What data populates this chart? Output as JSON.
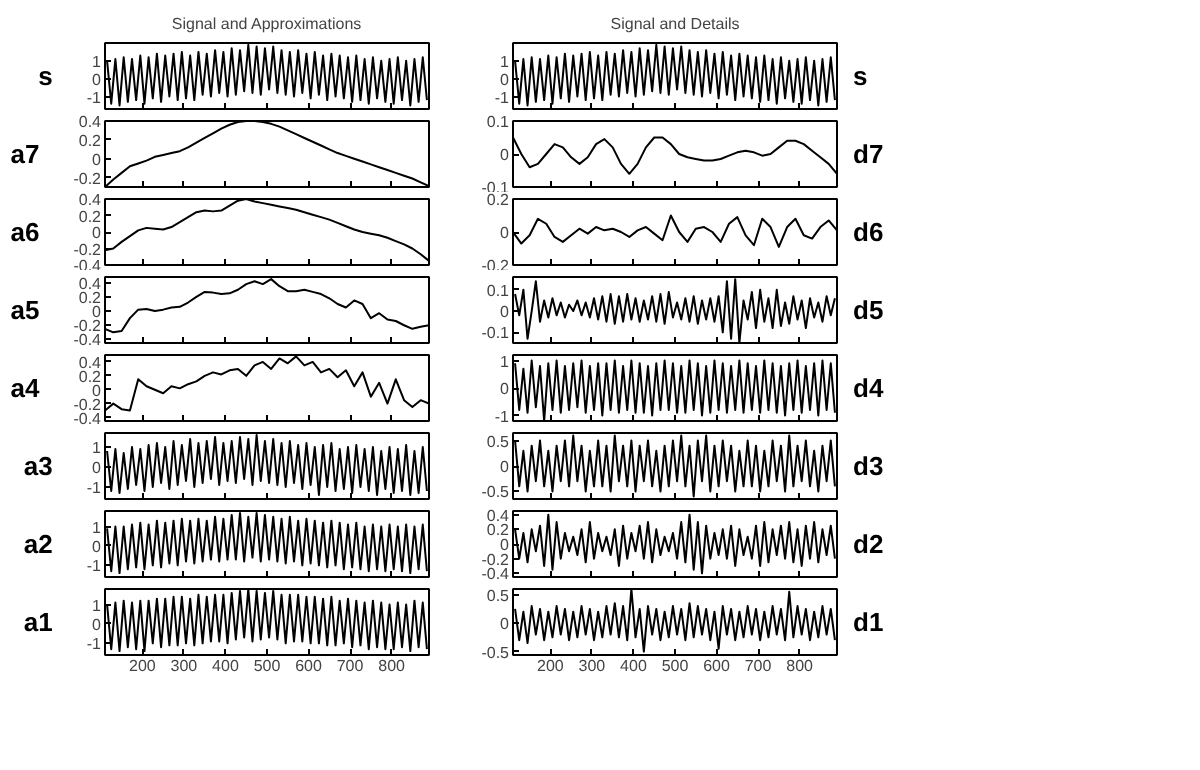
{
  "chart_data": [
    {
      "type": "line",
      "title": "Signal and Approximations",
      "ylabel": "s",
      "x": [
        115,
        125,
        135,
        145,
        155,
        165,
        175,
        185,
        195,
        205,
        215,
        225,
        235,
        245,
        255,
        265,
        275,
        285,
        295,
        305,
        315,
        325,
        335,
        345,
        355,
        365,
        375,
        385,
        395,
        405,
        415,
        425,
        435,
        445,
        455,
        465,
        475,
        485,
        495,
        505,
        515,
        525,
        535,
        545,
        555,
        565,
        575,
        585,
        595,
        605,
        615,
        625,
        635,
        645,
        655,
        665,
        675,
        685,
        695,
        705,
        715,
        725,
        735,
        745,
        755,
        765,
        775,
        785,
        795,
        805,
        815,
        825,
        835,
        845,
        855,
        865,
        875,
        885
      ],
      "series": [
        {
          "color": "#000000",
          "values": [
            1.0,
            -1.4,
            1.1,
            -1.5,
            1.2,
            -1.3,
            1.1,
            -1.2,
            1.3,
            -1.4,
            1.2,
            -1.1,
            1.4,
            -1.3,
            1.3,
            -1.0,
            1.4,
            -1.2,
            1.5,
            -1.1,
            1.3,
            -1.2,
            1.5,
            -0.9,
            1.4,
            -1.0,
            1.6,
            -0.8,
            1.5,
            -1.0,
            1.7,
            -0.9,
            1.6,
            -0.7,
            1.9,
            -0.8,
            1.8,
            -0.9,
            1.7,
            -0.6,
            1.8,
            -0.8,
            1.6,
            -0.9,
            1.5,
            -1.0,
            1.6,
            -0.8,
            1.4,
            -1.1,
            1.5,
            -0.9,
            1.3,
            -1.2,
            1.4,
            -1.0,
            1.3,
            -1.1,
            1.2,
            -1.3,
            1.3,
            -1.2,
            1.1,
            -1.4,
            1.2,
            -1.1,
            1.0,
            -1.3,
            1.1,
            -1.4,
            1.2,
            -1.2,
            1.0,
            -1.5,
            1.1,
            -1.3,
            1.2,
            -1.2
          ]
        }
      ],
      "xlim": [
        110,
        890
      ],
      "ylim": [
        -1.7,
        2.0
      ],
      "xticks": [
        200,
        300,
        400,
        500,
        600,
        700,
        800
      ],
      "yticks": [
        -1,
        0,
        1
      ],
      "tick_labels": "y"
    },
    {
      "type": "line",
      "title": "Signal and Details",
      "ylabel": "s",
      "x": [
        115,
        125,
        135,
        145,
        155,
        165,
        175,
        185,
        195,
        205,
        215,
        225,
        235,
        245,
        255,
        265,
        275,
        285,
        295,
        305,
        315,
        325,
        335,
        345,
        355,
        365,
        375,
        385,
        395,
        405,
        415,
        425,
        435,
        445,
        455,
        465,
        475,
        485,
        495,
        505,
        515,
        525,
        535,
        545,
        555,
        565,
        575,
        585,
        595,
        605,
        615,
        625,
        635,
        645,
        655,
        665,
        675,
        685,
        695,
        705,
        715,
        725,
        735,
        745,
        755,
        765,
        775,
        785,
        795,
        805,
        815,
        825,
        835,
        845,
        855,
        865,
        875,
        885
      ],
      "series": [
        {
          "color": "#000000",
          "values": [
            1.0,
            -1.4,
            1.1,
            -1.5,
            1.2,
            -1.3,
            1.1,
            -1.2,
            1.3,
            -1.4,
            1.2,
            -1.1,
            1.4,
            -1.3,
            1.3,
            -1.0,
            1.4,
            -1.2,
            1.5,
            -1.1,
            1.3,
            -1.2,
            1.5,
            -0.9,
            1.4,
            -1.0,
            1.6,
            -0.8,
            1.5,
            -1.0,
            1.7,
            -0.9,
            1.6,
            -0.7,
            1.9,
            -0.8,
            1.8,
            -0.9,
            1.7,
            -0.6,
            1.8,
            -0.8,
            1.6,
            -0.9,
            1.5,
            -1.0,
            1.6,
            -0.8,
            1.4,
            -1.1,
            1.5,
            -0.9,
            1.3,
            -1.2,
            1.4,
            -1.0,
            1.3,
            -1.1,
            1.2,
            -1.3,
            1.3,
            -1.2,
            1.1,
            -1.4,
            1.2,
            -1.1,
            1.0,
            -1.3,
            1.1,
            -1.4,
            1.2,
            -1.2,
            1.0,
            -1.5,
            1.1,
            -1.3,
            1.2,
            -1.2
          ]
        }
      ],
      "xlim": [
        110,
        890
      ],
      "ylim": [
        -1.7,
        2.0
      ],
      "xticks": [
        200,
        300,
        400,
        500,
        600,
        700,
        800
      ],
      "yticks": [
        -1,
        0,
        1
      ],
      "tick_labels": "y"
    },
    {
      "type": "line",
      "ylabel": "a7",
      "x": [
        110,
        130,
        150,
        170,
        190,
        210,
        230,
        250,
        270,
        290,
        310,
        330,
        350,
        370,
        390,
        410,
        430,
        450,
        470,
        490,
        510,
        530,
        550,
        570,
        590,
        610,
        630,
        650,
        670,
        690,
        710,
        730,
        750,
        770,
        790,
        810,
        830,
        850,
        870,
        890
      ],
      "series": [
        {
          "color": "#000000",
          "values": [
            -0.3,
            -0.22,
            -0.15,
            -0.08,
            -0.05,
            -0.02,
            0.02,
            0.04,
            0.06,
            0.08,
            0.12,
            0.17,
            0.22,
            0.27,
            0.32,
            0.36,
            0.39,
            0.4,
            0.4,
            0.39,
            0.37,
            0.34,
            0.3,
            0.26,
            0.22,
            0.18,
            0.14,
            0.1,
            0.06,
            0.03,
            0.0,
            -0.03,
            -0.06,
            -0.09,
            -0.12,
            -0.15,
            -0.18,
            -0.21,
            -0.25,
            -0.29
          ]
        }
      ],
      "xlim": [
        110,
        890
      ],
      "ylim": [
        -0.3,
        0.4
      ],
      "xticks": [
        200,
        300,
        400,
        500,
        600,
        700,
        800
      ],
      "yticks": [
        -0.2,
        0,
        0.2,
        0.4
      ],
      "tick_labels": "y"
    },
    {
      "type": "line",
      "ylabel": "d7",
      "x": [
        110,
        130,
        150,
        170,
        190,
        210,
        230,
        250,
        270,
        290,
        310,
        330,
        350,
        370,
        390,
        410,
        430,
        450,
        470,
        490,
        510,
        530,
        550,
        570,
        590,
        610,
        630,
        650,
        670,
        690,
        710,
        730,
        750,
        770,
        790,
        810,
        830,
        850,
        870,
        890
      ],
      "series": [
        {
          "color": "#000000",
          "values": [
            0.05,
            0.0,
            -0.04,
            -0.03,
            0.0,
            0.03,
            0.02,
            -0.01,
            -0.03,
            -0.01,
            0.03,
            0.045,
            0.02,
            -0.03,
            -0.06,
            -0.03,
            0.02,
            0.05,
            0.05,
            0.03,
            0.0,
            -0.01,
            -0.015,
            -0.02,
            -0.02,
            -0.015,
            -0.005,
            0.005,
            0.01,
            0.005,
            -0.005,
            0.0,
            0.02,
            0.04,
            0.04,
            0.03,
            0.01,
            -0.01,
            -0.03,
            -0.06
          ]
        }
      ],
      "xlim": [
        110,
        890
      ],
      "ylim": [
        -0.1,
        0.1
      ],
      "xticks": [
        200,
        300,
        400,
        500,
        600,
        700,
        800
      ],
      "yticks": [
        -0.1,
        0,
        0.1
      ],
      "tick_labels": "y"
    },
    {
      "type": "line",
      "ylabel": "a6",
      "x": [
        110,
        130,
        150,
        170,
        190,
        210,
        230,
        250,
        270,
        290,
        310,
        330,
        350,
        370,
        390,
        410,
        430,
        450,
        470,
        490,
        510,
        530,
        550,
        570,
        590,
        610,
        630,
        650,
        670,
        690,
        710,
        730,
        750,
        770,
        790,
        810,
        830,
        850,
        870,
        890
      ],
      "series": [
        {
          "color": "#000000",
          "values": [
            -0.22,
            -0.2,
            -0.12,
            -0.05,
            0.02,
            0.05,
            0.04,
            0.03,
            0.06,
            0.12,
            0.18,
            0.24,
            0.26,
            0.25,
            0.26,
            0.32,
            0.38,
            0.4,
            0.37,
            0.35,
            0.33,
            0.31,
            0.29,
            0.27,
            0.24,
            0.21,
            0.18,
            0.15,
            0.11,
            0.07,
            0.03,
            0.0,
            -0.02,
            -0.04,
            -0.07,
            -0.11,
            -0.15,
            -0.2,
            -0.27,
            -0.35
          ]
        }
      ],
      "xlim": [
        110,
        890
      ],
      "ylim": [
        -0.4,
        0.4
      ],
      "xticks": [
        200,
        300,
        400,
        500,
        600,
        700,
        800
      ],
      "yticks": [
        -0.4,
        -0.2,
        0,
        0.2,
        0.4
      ],
      "tick_labels": "y"
    },
    {
      "type": "line",
      "ylabel": "d6",
      "x": [
        110,
        130,
        150,
        170,
        190,
        210,
        230,
        250,
        270,
        290,
        310,
        330,
        350,
        370,
        390,
        410,
        430,
        450,
        470,
        490,
        510,
        530,
        550,
        570,
        590,
        610,
        630,
        650,
        670,
        690,
        710,
        730,
        750,
        770,
        790,
        810,
        830,
        850,
        870,
        890
      ],
      "series": [
        {
          "color": "#000000",
          "values": [
            0.0,
            -0.07,
            -0.02,
            0.08,
            0.05,
            -0.03,
            -0.06,
            -0.02,
            0.02,
            -0.01,
            0.03,
            0.01,
            0.02,
            0.0,
            -0.03,
            0.01,
            0.03,
            -0.01,
            -0.05,
            0.1,
            0.0,
            -0.06,
            0.02,
            0.03,
            0.0,
            -0.06,
            0.05,
            0.09,
            -0.02,
            -0.08,
            0.08,
            0.03,
            -0.09,
            0.03,
            0.08,
            -0.02,
            -0.04,
            0.03,
            0.07,
            0.01
          ]
        }
      ],
      "xlim": [
        110,
        890
      ],
      "ylim": [
        -0.2,
        0.2
      ],
      "xticks": [
        200,
        300,
        400,
        500,
        600,
        700,
        800
      ],
      "yticks": [
        -0.2,
        0,
        0.2
      ],
      "tick_labels": "y"
    },
    {
      "type": "line",
      "ylabel": "a5",
      "x": [
        110,
        130,
        150,
        170,
        190,
        210,
        230,
        250,
        270,
        290,
        310,
        330,
        350,
        370,
        390,
        410,
        430,
        450,
        470,
        490,
        510,
        530,
        550,
        570,
        590,
        610,
        630,
        650,
        670,
        690,
        710,
        730,
        750,
        770,
        790,
        810,
        830,
        850,
        870,
        890
      ],
      "series": [
        {
          "color": "#000000",
          "values": [
            -0.25,
            -0.3,
            -0.28,
            -0.1,
            0.02,
            0.03,
            0.0,
            0.02,
            0.05,
            0.06,
            0.12,
            0.2,
            0.27,
            0.26,
            0.24,
            0.25,
            0.3,
            0.38,
            0.42,
            0.38,
            0.45,
            0.35,
            0.28,
            0.28,
            0.3,
            0.27,
            0.24,
            0.18,
            0.1,
            0.05,
            0.15,
            0.1,
            -0.1,
            -0.03,
            -0.12,
            -0.14,
            -0.2,
            -0.25,
            -0.22,
            -0.2
          ]
        }
      ],
      "xlim": [
        110,
        890
      ],
      "ylim": [
        -0.45,
        0.48
      ],
      "xticks": [
        200,
        300,
        400,
        500,
        600,
        700,
        800
      ],
      "yticks": [
        -0.4,
        -0.2,
        0,
        0.2,
        0.4
      ],
      "tick_labels": "y"
    },
    {
      "type": "line",
      "ylabel": "d5",
      "x": [
        115,
        125,
        135,
        145,
        155,
        165,
        175,
        185,
        195,
        205,
        215,
        225,
        235,
        245,
        255,
        265,
        275,
        285,
        295,
        305,
        315,
        325,
        335,
        345,
        355,
        365,
        375,
        385,
        395,
        405,
        415,
        425,
        435,
        445,
        455,
        465,
        475,
        485,
        495,
        505,
        515,
        525,
        535,
        545,
        555,
        565,
        575,
        585,
        595,
        605,
        615,
        625,
        635,
        645,
        655,
        665,
        675,
        685,
        695,
        705,
        715,
        725,
        735,
        745,
        755,
        765,
        775,
        785,
        795,
        805,
        815,
        825,
        835,
        845,
        855,
        865,
        875,
        885
      ],
      "series": [
        {
          "color": "#000000",
          "values": [
            0.08,
            -0.02,
            0.1,
            -0.13,
            0.0,
            0.14,
            -0.05,
            0.05,
            -0.03,
            0.06,
            -0.02,
            0.04,
            -0.03,
            0.03,
            0.0,
            0.05,
            -0.02,
            0.04,
            -0.03,
            0.06,
            -0.04,
            0.07,
            -0.05,
            0.08,
            -0.06,
            0.07,
            -0.05,
            0.08,
            -0.04,
            0.06,
            -0.05,
            0.05,
            -0.04,
            0.07,
            -0.05,
            0.08,
            -0.06,
            0.09,
            -0.03,
            0.04,
            -0.04,
            0.06,
            -0.05,
            0.07,
            -0.06,
            0.05,
            -0.04,
            0.06,
            -0.05,
            0.07,
            -0.1,
            0.14,
            -0.13,
            0.15,
            -0.15,
            0.05,
            -0.04,
            0.09,
            -0.08,
            0.1,
            -0.05,
            0.06,
            -0.08,
            0.1,
            -0.07,
            0.04,
            -0.06,
            0.07,
            -0.04,
            0.05,
            -0.08,
            0.06,
            -0.03,
            0.04,
            -0.05,
            0.07,
            -0.02,
            0.06
          ]
        }
      ],
      "xlim": [
        110,
        890
      ],
      "ylim": [
        -0.15,
        0.16
      ],
      "xticks": [
        200,
        300,
        400,
        500,
        600,
        700,
        800
      ],
      "yticks": [
        -0.1,
        0,
        0.1
      ],
      "tick_labels": "y"
    },
    {
      "type": "line",
      "ylabel": "a4",
      "x": [
        110,
        130,
        150,
        170,
        190,
        210,
        230,
        250,
        270,
        290,
        310,
        330,
        350,
        370,
        390,
        410,
        430,
        450,
        470,
        490,
        510,
        530,
        550,
        570,
        590,
        610,
        630,
        650,
        670,
        690,
        710,
        730,
        750,
        770,
        790,
        810,
        830,
        850,
        870,
        890
      ],
      "series": [
        {
          "color": "#000000",
          "values": [
            -0.3,
            -0.2,
            -0.28,
            -0.3,
            0.15,
            0.05,
            0.0,
            -0.05,
            0.05,
            0.02,
            0.08,
            0.12,
            0.2,
            0.25,
            0.22,
            0.28,
            0.3,
            0.2,
            0.35,
            0.4,
            0.3,
            0.45,
            0.38,
            0.48,
            0.35,
            0.4,
            0.25,
            0.3,
            0.18,
            0.28,
            0.05,
            0.25,
            -0.1,
            0.1,
            -0.2,
            0.15,
            -0.15,
            -0.25,
            -0.15,
            -0.2
          ]
        }
      ],
      "xlim": [
        110,
        890
      ],
      "ylim": [
        -0.45,
        0.5
      ],
      "xticks": [
        200,
        300,
        400,
        500,
        600,
        700,
        800
      ],
      "yticks": [
        -0.4,
        -0.2,
        0,
        0.2,
        0.4
      ],
      "tick_labels": "y"
    },
    {
      "type": "line",
      "ylabel": "d4",
      "x": [
        115,
        125,
        135,
        145,
        155,
        165,
        175,
        185,
        195,
        205,
        215,
        225,
        235,
        245,
        255,
        265,
        275,
        285,
        295,
        305,
        315,
        325,
        335,
        345,
        355,
        365,
        375,
        385,
        395,
        405,
        415,
        425,
        435,
        445,
        455,
        465,
        475,
        485,
        495,
        505,
        515,
        525,
        535,
        545,
        555,
        565,
        575,
        585,
        595,
        605,
        615,
        625,
        635,
        645,
        655,
        665,
        675,
        685,
        695,
        705,
        715,
        725,
        735,
        745,
        755,
        765,
        775,
        785,
        795,
        805,
        815,
        825,
        835,
        845,
        855,
        865,
        875,
        885
      ],
      "series": [
        {
          "color": "#000000",
          "values": [
            0.9,
            -0.8,
            0.7,
            -0.9,
            1.0,
            -0.7,
            0.8,
            -1.2,
            0.9,
            -0.8,
            1.0,
            -0.9,
            0.8,
            -0.8,
            0.9,
            -0.7,
            1.0,
            -0.9,
            0.8,
            -0.8,
            0.9,
            -1.0,
            0.9,
            -0.8,
            1.0,
            -0.9,
            0.8,
            -0.8,
            1.0,
            -0.9,
            0.9,
            -0.9,
            0.8,
            -1.0,
            0.9,
            -0.8,
            1.0,
            -0.8,
            0.9,
            -0.9,
            0.8,
            -0.9,
            1.0,
            -0.8,
            0.9,
            -1.0,
            0.8,
            -0.9,
            1.0,
            -0.8,
            0.9,
            -0.9,
            0.8,
            -0.8,
            1.0,
            -0.9,
            0.9,
            -0.8,
            0.8,
            -0.9,
            1.0,
            -0.8,
            0.9,
            -0.9,
            0.8,
            -1.0,
            0.9,
            -0.8,
            1.0,
            -0.9,
            0.8,
            -0.8,
            0.9,
            -1.0,
            1.0,
            -0.8,
            0.9,
            -0.9
          ]
        }
      ],
      "xlim": [
        110,
        890
      ],
      "ylim": [
        -1.2,
        1.2
      ],
      "xticks": [
        200,
        300,
        400,
        500,
        600,
        700,
        800
      ],
      "yticks": [
        -1,
        0,
        1
      ],
      "tick_labels": "y"
    },
    {
      "type": "line",
      "ylabel": "a3",
      "x": [
        115,
        125,
        135,
        145,
        155,
        165,
        175,
        185,
        195,
        205,
        215,
        225,
        235,
        245,
        255,
        265,
        275,
        285,
        295,
        305,
        315,
        325,
        335,
        345,
        355,
        365,
        375,
        385,
        395,
        405,
        415,
        425,
        435,
        445,
        455,
        465,
        475,
        485,
        495,
        505,
        515,
        525,
        535,
        545,
        555,
        565,
        575,
        585,
        595,
        605,
        615,
        625,
        635,
        645,
        655,
        665,
        675,
        685,
        695,
        705,
        715,
        725,
        735,
        745,
        755,
        765,
        775,
        785,
        795,
        805,
        815,
        825,
        835,
        845,
        855,
        865,
        875,
        885
      ],
      "series": [
        {
          "color": "#000000",
          "values": [
            0.8,
            -1.2,
            0.9,
            -1.3,
            0.7,
            -1.1,
            1.0,
            -0.9,
            0.9,
            -1.2,
            1.1,
            -1.0,
            1.2,
            -0.8,
            1.0,
            -1.1,
            1.3,
            -0.9,
            1.1,
            -0.7,
            1.4,
            -1.0,
            1.2,
            -0.8,
            1.3,
            -0.6,
            1.5,
            -0.9,
            1.2,
            -0.7,
            1.3,
            -0.8,
            1.5,
            -0.6,
            1.4,
            -0.9,
            1.6,
            -0.7,
            1.3,
            -0.8,
            1.4,
            -0.9,
            1.2,
            -1.0,
            1.3,
            -0.8,
            1.1,
            -1.1,
            1.2,
            -0.9,
            1.0,
            -1.4,
            1.1,
            -1.0,
            1.2,
            -1.2,
            0.9,
            -1.1,
            1.0,
            -1.3,
            1.1,
            -1.0,
            0.9,
            -1.2,
            1.0,
            -1.4,
            0.8,
            -1.1,
            1.0,
            -1.3,
            0.9,
            -1.2,
            1.1,
            -1.4,
            0.8,
            -1.3,
            1.0,
            -1.2
          ]
        }
      ],
      "xlim": [
        110,
        890
      ],
      "ylim": [
        -1.6,
        1.7
      ],
      "xticks": [
        200,
        300,
        400,
        500,
        600,
        700,
        800
      ],
      "yticks": [
        -1,
        0,
        1
      ],
      "tick_labels": "y"
    },
    {
      "type": "line",
      "ylabel": "d3",
      "x": [
        115,
        125,
        135,
        145,
        155,
        165,
        175,
        185,
        195,
        205,
        215,
        225,
        235,
        245,
        255,
        265,
        275,
        285,
        295,
        305,
        315,
        325,
        335,
        345,
        355,
        365,
        375,
        385,
        395,
        405,
        415,
        425,
        435,
        445,
        455,
        465,
        475,
        485,
        495,
        505,
        515,
        525,
        535,
        545,
        555,
        565,
        575,
        585,
        595,
        605,
        615,
        625,
        635,
        645,
        655,
        665,
        675,
        685,
        695,
        705,
        715,
        725,
        735,
        745,
        755,
        765,
        775,
        785,
        795,
        805,
        815,
        825,
        835,
        845,
        855,
        865,
        875,
        885
      ],
      "series": [
        {
          "color": "#000000",
          "values": [
            0.5,
            -0.4,
            0.3,
            -0.5,
            0.4,
            -0.3,
            0.5,
            -0.4,
            0.3,
            -0.5,
            0.4,
            -0.3,
            0.5,
            -0.4,
            0.6,
            -0.3,
            0.4,
            -0.5,
            0.3,
            -0.4,
            0.5,
            -0.4,
            0.4,
            -0.5,
            0.6,
            -0.3,
            0.4,
            -0.4,
            0.5,
            -0.5,
            0.4,
            -0.3,
            0.5,
            -0.4,
            0.3,
            -0.5,
            0.4,
            -0.4,
            0.5,
            -0.3,
            0.6,
            -0.4,
            0.4,
            -0.6,
            0.5,
            -0.3,
            0.6,
            -0.5,
            0.4,
            -0.4,
            0.5,
            -0.3,
            0.4,
            -0.5,
            0.3,
            -0.4,
            0.5,
            -0.4,
            0.4,
            -0.5,
            0.3,
            -0.4,
            0.5,
            -0.3,
            0.4,
            -0.5,
            0.6,
            -0.4,
            0.4,
            -0.3,
            0.5,
            -0.4,
            0.3,
            -0.5,
            0.4,
            -0.3,
            0.5,
            -0.4
          ]
        }
      ],
      "xlim": [
        110,
        890
      ],
      "ylim": [
        -0.65,
        0.65
      ],
      "xticks": [
        200,
        300,
        400,
        500,
        600,
        700,
        800
      ],
      "yticks": [
        -0.5,
        0,
        0.5
      ],
      "tick_labels": "y"
    },
    {
      "type": "line",
      "ylabel": "a2",
      "x": [
        115,
        125,
        135,
        145,
        155,
        165,
        175,
        185,
        195,
        205,
        215,
        225,
        235,
        245,
        255,
        265,
        275,
        285,
        295,
        305,
        315,
        325,
        335,
        345,
        355,
        365,
        375,
        385,
        395,
        405,
        415,
        425,
        435,
        445,
        455,
        465,
        475,
        485,
        495,
        505,
        515,
        525,
        535,
        545,
        555,
        565,
        575,
        585,
        595,
        605,
        615,
        625,
        635,
        645,
        655,
        665,
        675,
        685,
        695,
        705,
        715,
        725,
        735,
        745,
        755,
        765,
        775,
        785,
        795,
        805,
        815,
        825,
        835,
        845,
        855,
        865,
        875,
        885
      ],
      "series": [
        {
          "color": "#000000",
          "values": [
            0.9,
            -1.3,
            1.0,
            -1.4,
            1.0,
            -1.2,
            1.1,
            -1.1,
            1.2,
            -1.2,
            1.1,
            -1.0,
            1.3,
            -1.1,
            1.2,
            -0.9,
            1.3,
            -1.0,
            1.4,
            -0.8,
            1.3,
            -0.9,
            1.4,
            -0.8,
            1.3,
            -0.7,
            1.5,
            -0.8,
            1.4,
            -0.7,
            1.6,
            -0.7,
            1.7,
            -0.8,
            1.5,
            -0.6,
            1.7,
            -0.8,
            1.6,
            -0.7,
            1.5,
            -0.8,
            1.4,
            -0.9,
            1.5,
            -0.8,
            1.3,
            -1.0,
            1.4,
            -0.9,
            1.3,
            -1.0,
            1.2,
            -1.1,
            1.3,
            -1.0,
            1.2,
            -1.2,
            1.1,
            -1.1,
            1.2,
            -1.2,
            1.0,
            -1.3,
            1.1,
            -1.2,
            1.0,
            -1.3,
            1.1,
            -1.2,
            1.0,
            -1.3,
            1.1,
            -1.4,
            1.0,
            -1.2,
            1.1,
            -1.3
          ]
        }
      ],
      "xlim": [
        110,
        890
      ],
      "ylim": [
        -1.6,
        1.8
      ],
      "xticks": [
        200,
        300,
        400,
        500,
        600,
        700,
        800
      ],
      "yticks": [
        -1,
        0,
        1
      ],
      "tick_labels": "y"
    },
    {
      "type": "line",
      "ylabel": "d2",
      "x": [
        115,
        125,
        135,
        145,
        155,
        165,
        175,
        185,
        195,
        205,
        215,
        225,
        235,
        245,
        255,
        265,
        275,
        285,
        295,
        305,
        315,
        325,
        335,
        345,
        355,
        365,
        375,
        385,
        395,
        405,
        415,
        425,
        435,
        445,
        455,
        465,
        475,
        485,
        495,
        505,
        515,
        525,
        535,
        545,
        555,
        565,
        575,
        585,
        595,
        605,
        615,
        625,
        635,
        645,
        655,
        665,
        675,
        685,
        695,
        705,
        715,
        725,
        735,
        745,
        755,
        765,
        775,
        785,
        795,
        805,
        815,
        825,
        835,
        845,
        855,
        865,
        875,
        885
      ],
      "series": [
        {
          "color": "#000000",
          "values": [
            0.2,
            -0.2,
            0.15,
            -0.25,
            0.2,
            -0.1,
            0.25,
            -0.3,
            0.4,
            -0.35,
            0.3,
            -0.2,
            0.15,
            -0.1,
            0.1,
            -0.15,
            0.2,
            -0.25,
            0.3,
            -0.2,
            0.15,
            -0.1,
            0.1,
            -0.15,
            0.2,
            -0.3,
            0.25,
            -0.2,
            0.15,
            -0.1,
            0.25,
            -0.2,
            0.3,
            -0.25,
            0.2,
            -0.15,
            0.1,
            -0.1,
            0.15,
            -0.2,
            0.3,
            -0.25,
            0.4,
            -0.35,
            0.3,
            -0.4,
            0.25,
            -0.2,
            0.15,
            -0.15,
            0.2,
            -0.2,
            0.25,
            -0.3,
            0.2,
            -0.15,
            0.1,
            -0.2,
            0.25,
            -0.3,
            0.3,
            -0.25,
            0.2,
            -0.15,
            0.25,
            -0.2,
            0.3,
            -0.25,
            0.2,
            -0.3,
            0.25,
            -0.2,
            0.3,
            -0.25,
            0.2,
            -0.15,
            0.25,
            -0.2
          ]
        }
      ],
      "xlim": [
        110,
        890
      ],
      "ylim": [
        -0.45,
        0.45
      ],
      "xticks": [
        200,
        300,
        400,
        500,
        600,
        700,
        800
      ],
      "yticks": [
        -0.4,
        -0.2,
        0,
        0.2,
        0.4
      ],
      "tick_labels": "y"
    },
    {
      "type": "line",
      "ylabel": "a1",
      "x": [
        115,
        125,
        135,
        145,
        155,
        165,
        175,
        185,
        195,
        205,
        215,
        225,
        235,
        245,
        255,
        265,
        275,
        285,
        295,
        305,
        315,
        325,
        335,
        345,
        355,
        365,
        375,
        385,
        395,
        405,
        415,
        425,
        435,
        445,
        455,
        465,
        475,
        485,
        495,
        505,
        515,
        525,
        535,
        545,
        555,
        565,
        575,
        585,
        595,
        605,
        615,
        625,
        635,
        645,
        655,
        665,
        675,
        685,
        695,
        705,
        715,
        725,
        735,
        745,
        755,
        765,
        775,
        785,
        795,
        805,
        815,
        825,
        835,
        845,
        855,
        865,
        875,
        885
      ],
      "series": [
        {
          "color": "#000000",
          "values": [
            1.0,
            -1.3,
            1.1,
            -1.4,
            1.2,
            -1.2,
            1.1,
            -1.3,
            1.2,
            -1.4,
            1.2,
            -1.0,
            1.3,
            -1.2,
            1.3,
            -1.1,
            1.4,
            -1.1,
            1.4,
            -1.0,
            1.3,
            -1.1,
            1.5,
            -1.0,
            1.4,
            -0.9,
            1.5,
            -0.9,
            1.5,
            -1.0,
            1.6,
            -0.8,
            1.7,
            -0.7,
            1.8,
            -0.9,
            1.7,
            -0.8,
            1.6,
            -0.7,
            1.7,
            -0.8,
            1.5,
            -1.0,
            1.5,
            -0.9,
            1.5,
            -0.9,
            1.4,
            -1.0,
            1.4,
            -1.0,
            1.3,
            -1.1,
            1.4,
            -1.1,
            1.2,
            -1.0,
            1.3,
            -1.2,
            1.2,
            -1.1,
            1.1,
            -1.3,
            1.2,
            -1.2,
            1.1,
            -1.3,
            1.0,
            -1.3,
            1.1,
            -1.2,
            1.0,
            -1.4,
            1.2,
            -1.2,
            1.1,
            -1.3
          ]
        }
      ],
      "xlim": [
        110,
        890
      ],
      "ylim": [
        -1.6,
        1.8
      ],
      "xticks": [
        200,
        300,
        400,
        500,
        600,
        700,
        800
      ],
      "yticks": [
        -1,
        0,
        1
      ]
    },
    {
      "type": "line",
      "ylabel": "d1",
      "x": [
        115,
        125,
        135,
        145,
        155,
        165,
        175,
        185,
        195,
        205,
        215,
        225,
        235,
        245,
        255,
        265,
        275,
        285,
        295,
        305,
        315,
        325,
        335,
        345,
        355,
        365,
        375,
        385,
        395,
        405,
        415,
        425,
        435,
        445,
        455,
        465,
        475,
        485,
        495,
        505,
        515,
        525,
        535,
        545,
        555,
        565,
        575,
        585,
        595,
        605,
        615,
        625,
        635,
        645,
        655,
        665,
        675,
        685,
        695,
        705,
        715,
        725,
        735,
        745,
        755,
        765,
        775,
        785,
        795,
        805,
        815,
        825,
        835,
        845,
        855,
        865,
        875,
        885
      ],
      "series": [
        {
          "color": "#000000",
          "values": [
            0.25,
            -0.3,
            0.2,
            -0.35,
            0.3,
            -0.2,
            0.25,
            -0.3,
            0.2,
            -0.25,
            0.3,
            -0.2,
            0.25,
            -0.3,
            0.2,
            -0.25,
            0.3,
            -0.2,
            0.25,
            -0.3,
            0.2,
            -0.25,
            0.3,
            -0.2,
            0.35,
            -0.25,
            0.3,
            -0.3,
            0.6,
            -0.25,
            0.25,
            -0.5,
            0.3,
            -0.2,
            0.25,
            -0.3,
            0.2,
            -0.25,
            0.3,
            -0.2,
            0.25,
            -0.3,
            0.35,
            -0.25,
            0.3,
            -0.2,
            0.25,
            -0.3,
            0.2,
            -0.45,
            0.3,
            -0.2,
            0.25,
            -0.3,
            0.2,
            -0.25,
            0.3,
            -0.2,
            0.25,
            -0.3,
            0.2,
            -0.25,
            0.3,
            -0.2,
            0.25,
            -0.3,
            0.55,
            -0.25,
            0.3,
            -0.2,
            0.25,
            -0.3,
            0.2,
            -0.25,
            0.3,
            -0.2,
            0.25,
            -0.3
          ]
        }
      ],
      "xlim": [
        110,
        890
      ],
      "ylim": [
        -0.56,
        0.6
      ],
      "xticks": [
        200,
        300,
        400,
        500,
        600,
        700,
        800
      ],
      "yticks": [
        -0.5,
        0,
        0.5
      ]
    }
  ]
}
